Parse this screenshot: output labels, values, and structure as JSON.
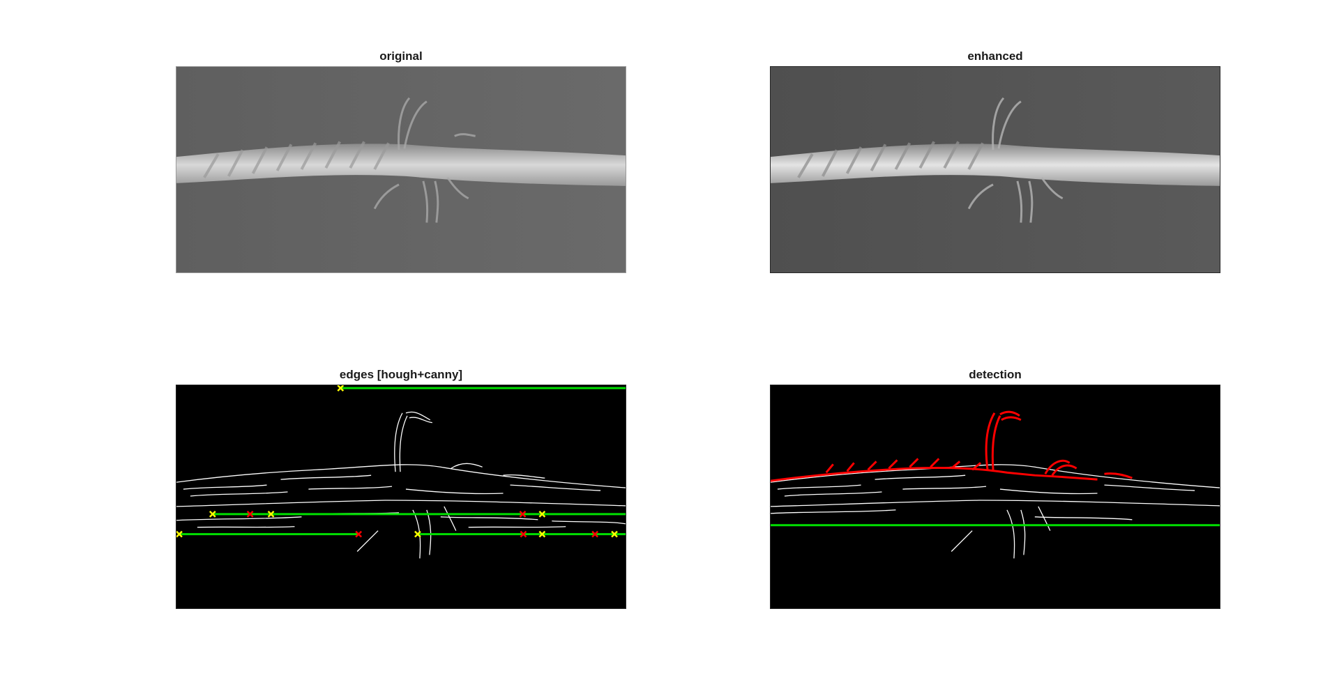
{
  "panels": [
    {
      "title": "original"
    },
    {
      "title": "enhanced"
    },
    {
      "title": "edges [hough+canny]"
    },
    {
      "title": "detection"
    }
  ],
  "colors": {
    "background": "#ffffff",
    "edge_background": "#000000",
    "edge_lines": "#ffffff",
    "hough_lines": "#00e000",
    "line_start_markers": "#ffff00",
    "line_end_markers": "#ff0000",
    "detected_fibers": "#ff0000"
  },
  "icons": {
    "start_marker": "yellow-x-marker",
    "end_marker": "red-x-marker"
  }
}
